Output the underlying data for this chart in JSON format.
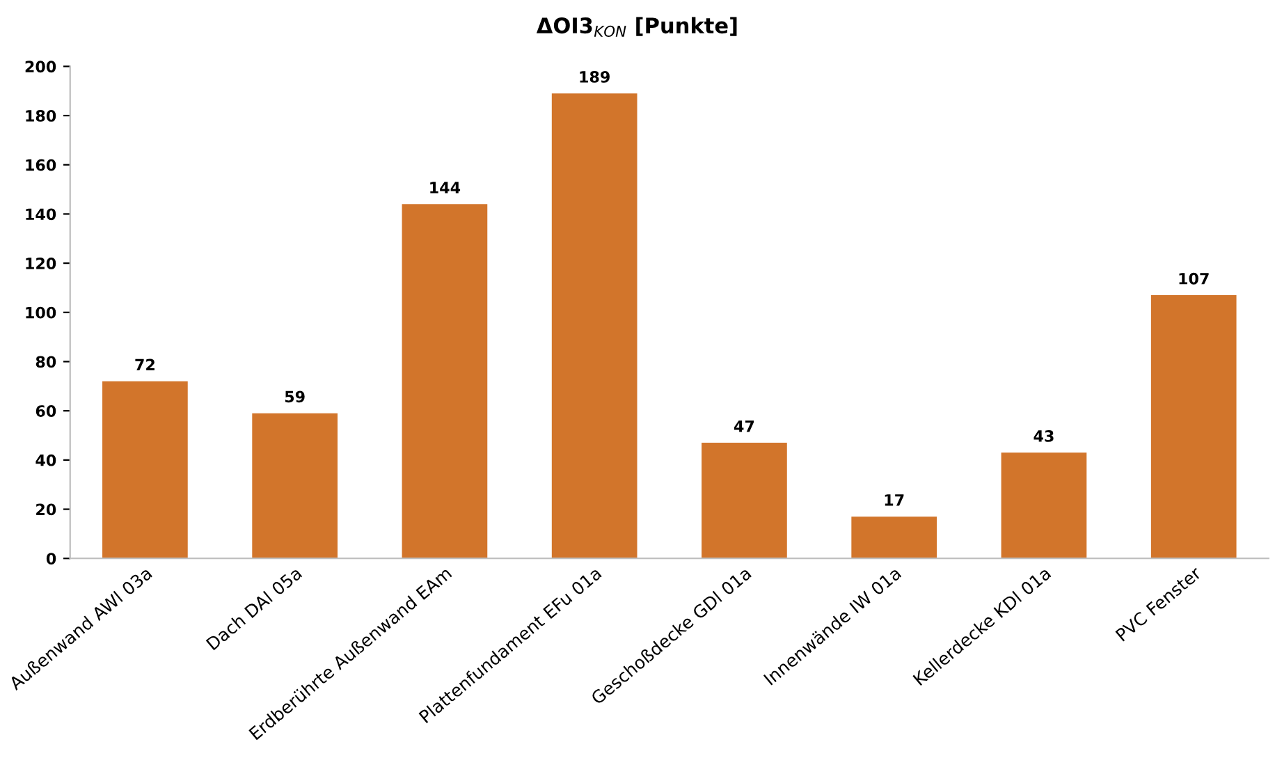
{
  "chart_data": {
    "type": "bar",
    "title": "ΔOI3$_{KON}$ [Punkte]",
    "categories": [
      "Außenwand AWl 03a",
      "Dach DAl 05a",
      "Erdberührte Außenwand EAm",
      "Plattenfundament EFu 01a",
      "Geschoßdecke GDl 01a",
      "Innenwände IW 01a",
      "Kellerdecke KDl 01a",
      "PVC Fenster"
    ],
    "values": [
      72,
      59,
      144,
      189,
      47,
      17,
      43,
      107
    ],
    "color": "#d2752b",
    "ylim": [
      0,
      200
    ],
    "yticks": [
      0,
      20,
      40,
      60,
      80,
      100,
      120,
      140,
      160,
      180,
      200
    ],
    "data_labels": true,
    "grid": false,
    "legend": false
  }
}
